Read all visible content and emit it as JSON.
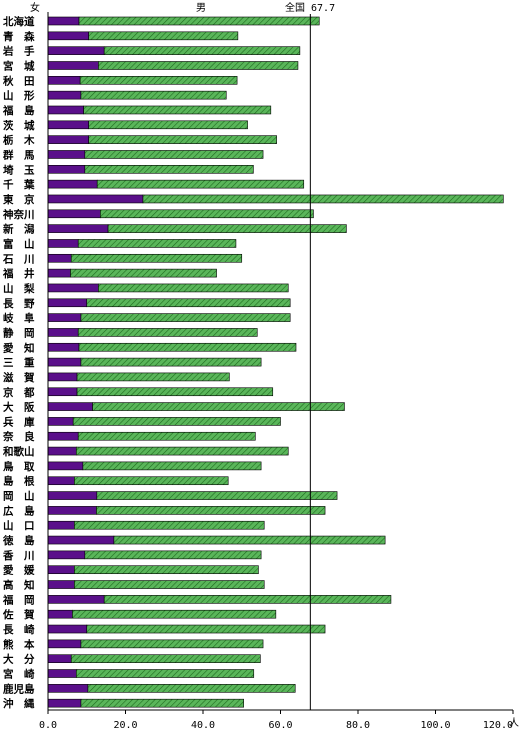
{
  "chart_data": {
    "type": "bar",
    "orientation": "horizontal",
    "stacked": true,
    "title": "",
    "xlabel": "",
    "unit": "人",
    "xlim": [
      0,
      120
    ],
    "x_ticks": [
      "0.0",
      "20.0",
      "40.0",
      "60.0",
      "80.0",
      "100.0",
      "120.0"
    ],
    "categories": [
      "北海道",
      "青　森",
      "岩　手",
      "宮　城",
      "秋　田",
      "山　形",
      "福　島",
      "茨　城",
      "栃　木",
      "群　馬",
      "埼　玉",
      "千　葉",
      "東　京",
      "神奈川",
      "新　潟",
      "富　山",
      "石　川",
      "福　井",
      "山　梨",
      "長　野",
      "岐　阜",
      "静　岡",
      "愛　知",
      "三　重",
      "滋　賀",
      "京　都",
      "大　阪",
      "兵　庫",
      "奈　良",
      "和歌山",
      "鳥　取",
      "島　根",
      "岡　山",
      "広　島",
      "山　口",
      "徳　島",
      "香　川",
      "愛　媛",
      "高　知",
      "福　岡",
      "佐　賀",
      "長　崎",
      "熊　本",
      "大　分",
      "宮　崎",
      "鹿児島",
      "沖　縄"
    ],
    "series": [
      {
        "name": "女",
        "color": "#5a0f8a",
        "values": [
          8.0,
          10.5,
          14.5,
          13.0,
          8.3,
          8.5,
          9.2,
          10.5,
          10.5,
          9.5,
          9.5,
          12.7,
          24.5,
          13.5,
          15.5,
          7.8,
          6.0,
          5.8,
          13.0,
          10.0,
          8.5,
          7.8,
          8.0,
          8.5,
          7.5,
          7.5,
          11.5,
          6.5,
          7.8,
          7.3,
          9.0,
          6.8,
          12.6,
          12.5,
          6.8,
          17.0,
          9.5,
          6.8,
          6.8,
          14.5,
          6.3,
          10.0,
          8.5,
          6.0,
          7.3,
          10.3,
          8.5
        ]
      },
      {
        "name": "男",
        "color": "#5ab65a",
        "values": [
          62.0,
          38.5,
          50.5,
          51.5,
          40.5,
          37.5,
          48.3,
          41.0,
          48.5,
          46.0,
          43.5,
          53.3,
          93.0,
          55.0,
          61.5,
          40.7,
          44.0,
          37.7,
          49.0,
          52.5,
          54.0,
          46.2,
          56.0,
          46.5,
          39.3,
          50.5,
          65.0,
          53.5,
          45.7,
          54.7,
          46.0,
          39.7,
          62.0,
          59.0,
          49.0,
          70.0,
          45.5,
          47.5,
          49.0,
          74.0,
          52.5,
          61.5,
          47.0,
          48.8,
          45.8,
          53.5,
          42.0
        ]
      }
    ],
    "reference_line": {
      "label": "全国 67.7",
      "value": 67.7
    },
    "grid": false,
    "legend": "top"
  }
}
